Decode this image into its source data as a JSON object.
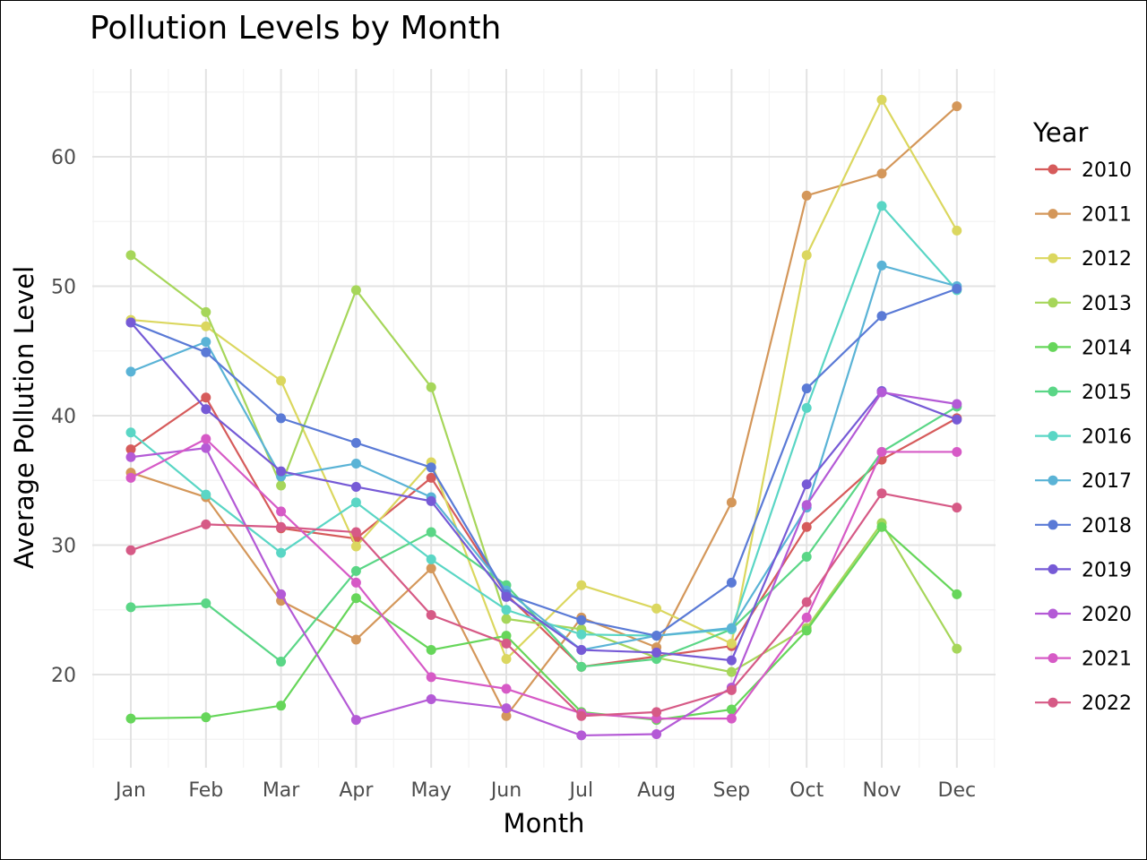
{
  "chart_data": {
    "type": "line",
    "title": "Pollution Levels by Month",
    "xlabel": "Month",
    "ylabel": "Average Pollution Level",
    "categories": [
      "Jan",
      "Feb",
      "Mar",
      "Apr",
      "May",
      "Jun",
      "Jul",
      "Aug",
      "Sep",
      "Oct",
      "Nov",
      "Dec"
    ],
    "yticks": [
      20,
      30,
      40,
      50,
      60
    ],
    "ylim": [
      12.7,
      66.5
    ],
    "grid": true,
    "legend": {
      "title": "Year",
      "position": "right"
    },
    "series": [
      {
        "name": "2010",
        "color": "#d65b5b",
        "values": [
          37.4,
          41.4,
          31.3,
          30.5,
          35.2,
          26.2,
          20.6,
          21.4,
          22.2,
          31.4,
          36.6,
          39.8
        ]
      },
      {
        "name": "2011",
        "color": "#d4975a",
        "values": [
          35.6,
          33.7,
          25.7,
          22.7,
          28.2,
          16.8,
          24.4,
          22.1,
          33.3,
          57.0,
          58.7,
          63.9
        ]
      },
      {
        "name": "2012",
        "color": "#dbd75f",
        "values": [
          47.4,
          46.9,
          42.7,
          29.9,
          36.4,
          21.2,
          26.9,
          25.1,
          22.4,
          52.4,
          64.4,
          54.3
        ]
      },
      {
        "name": "2013",
        "color": "#a6d65a",
        "values": [
          52.4,
          48.0,
          34.6,
          49.7,
          42.2,
          24.3,
          23.5,
          21.3,
          20.2,
          23.6,
          31.7,
          22.0
        ]
      },
      {
        "name": "2014",
        "color": "#66d65a",
        "values": [
          16.6,
          16.7,
          17.6,
          25.9,
          21.9,
          23.0,
          17.1,
          16.5,
          17.3,
          23.4,
          31.4,
          26.2
        ]
      },
      {
        "name": "2015",
        "color": "#5ad686",
        "values": [
          25.2,
          25.5,
          21.0,
          28.0,
          31.0,
          26.9,
          20.6,
          21.2,
          23.5,
          29.1,
          37.2,
          40.7
        ]
      },
      {
        "name": "2016",
        "color": "#5ad6c5",
        "values": [
          38.7,
          33.9,
          29.4,
          33.3,
          28.9,
          25.0,
          23.1,
          23.0,
          23.5,
          40.6,
          56.2,
          49.7
        ]
      },
      {
        "name": "2017",
        "color": "#5ab3d6",
        "values": [
          43.4,
          45.7,
          35.3,
          36.3,
          33.7,
          26.5,
          21.9,
          23.0,
          23.6,
          32.9,
          51.6,
          50.0
        ]
      },
      {
        "name": "2018",
        "color": "#5a7ad6",
        "values": [
          47.2,
          44.9,
          39.8,
          37.9,
          36.0,
          26.2,
          24.2,
          23.0,
          27.1,
          42.1,
          47.7,
          49.8
        ]
      },
      {
        "name": "2019",
        "color": "#765ad6",
        "values": [
          47.2,
          40.5,
          35.7,
          34.5,
          33.4,
          26.0,
          21.9,
          21.7,
          21.1,
          34.7,
          41.9,
          39.7
        ]
      },
      {
        "name": "2020",
        "color": "#b45ad6",
        "values": [
          36.8,
          37.5,
          26.2,
          16.5,
          18.1,
          17.4,
          15.3,
          15.4,
          19.0,
          33.1,
          41.8,
          40.9
        ]
      },
      {
        "name": "2021",
        "color": "#d65ac6",
        "values": [
          35.2,
          38.2,
          32.6,
          27.1,
          19.8,
          18.9,
          17.0,
          16.6,
          16.6,
          24.4,
          37.2,
          37.2
        ]
      },
      {
        "name": "2022",
        "color": "#d65a86",
        "values": [
          29.6,
          31.6,
          31.4,
          31.0,
          24.6,
          22.4,
          16.8,
          17.1,
          18.8,
          25.6,
          34.0,
          32.9
        ]
      }
    ]
  }
}
